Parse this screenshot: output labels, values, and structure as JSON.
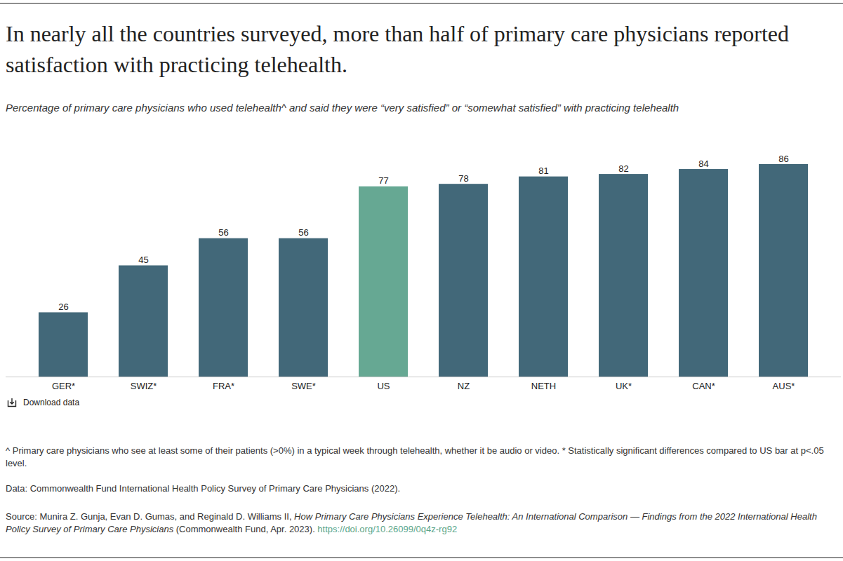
{
  "chart_data": {
    "type": "bar",
    "title": "In nearly all the countries surveyed, more than half of primary care physicians reported satisfaction with practicing telehealth.",
    "subtitle": "Percentage of primary care physicians who used telehealth^ and said they were “very satisfied” or “somewhat satisfied” with practicing telehealth",
    "categories": [
      "GER*",
      "SWIZ*",
      "FRA*",
      "SWE*",
      "US",
      "NZ",
      "NETH",
      "UK*",
      "CAN*",
      "AUS*"
    ],
    "values": [
      26,
      45,
      56,
      56,
      77,
      78,
      81,
      82,
      84,
      86
    ],
    "colors": [
      "#426879",
      "#426879",
      "#426879",
      "#426879",
      "#66a893",
      "#426879",
      "#426879",
      "#426879",
      "#426879",
      "#426879"
    ],
    "ylim": [
      0,
      86
    ],
    "yticks": [],
    "grid": false,
    "data_labels": true,
    "tick_labels": "x",
    "download_label": "Download data",
    "footnote": "^ Primary care physicians who see at least some of their patients (>0%) in a typical week through telehealth, whether it be audio or video. * Statistically significant differences compared to US bar at p<.05 level.",
    "data_note": "Data: Commonwealth Fund International Health Policy Survey of Primary Care Physicians (2022).",
    "source": {
      "prefix": "Source: Munira Z. Gunja, Evan D. Gumas, and Reginald D. Williams II, ",
      "title": "How Primary Care Physicians Experience Telehealth: An International Comparison — Findings from the 2022 International Health Policy Survey of Primary Care Physicians",
      "suffix": " (Commonwealth Fund, Apr. 2023). ",
      "link": "https://doi.org/10.26099/0q4z-rg92"
    }
  }
}
